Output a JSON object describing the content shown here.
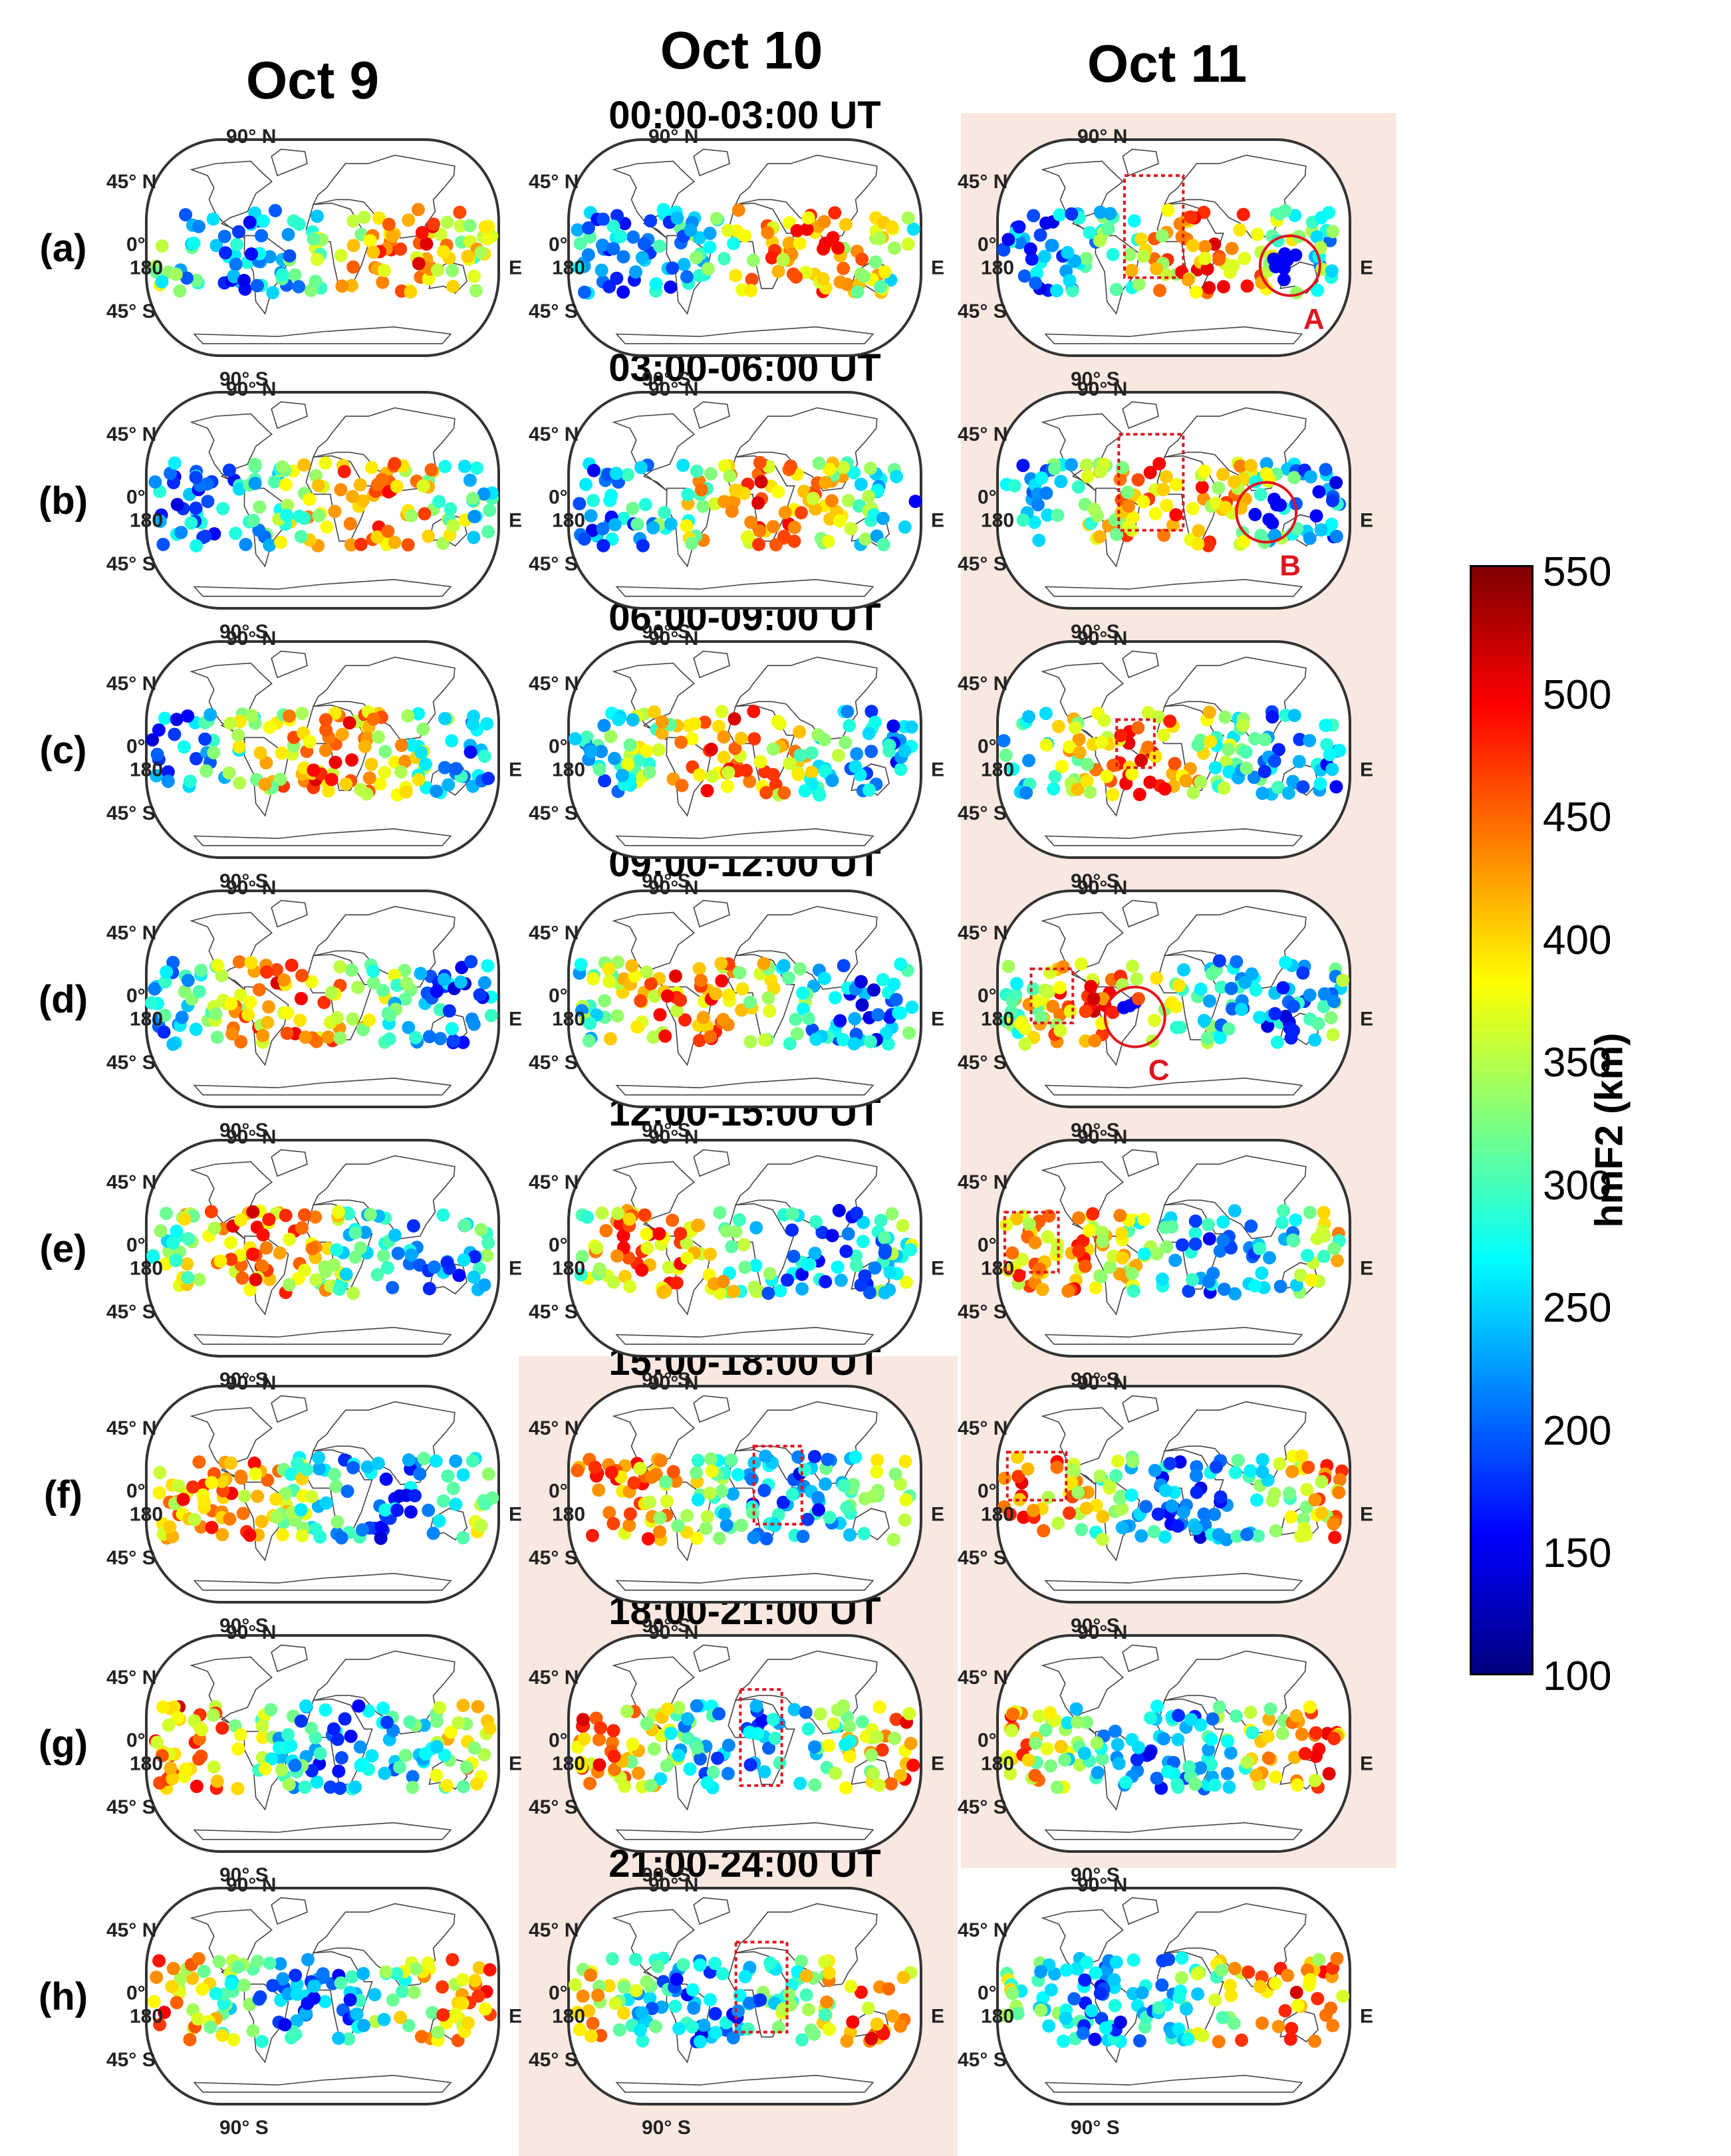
{
  "columns": [
    "Oct 9",
    "Oct 10",
    "Oct 11"
  ],
  "rows": [
    "(a)",
    "(b)",
    "(c)",
    "(d)",
    "(e)",
    "(f)",
    "(g)",
    "(h)"
  ],
  "time_windows": [
    "00:00-03:00 UT",
    "03:00-06:00 UT",
    "06:00-09:00 UT",
    "09:00-12:00 UT",
    "12:00-15:00 UT",
    "15:00-18:00 UT",
    "18:00-21:00 UT",
    "21:00-24:00 UT"
  ],
  "map_axis_labels": {
    "lat_90n": "90° N",
    "lat_45n": "45° N",
    "lat_0": "0°",
    "lat_45s": "45° S",
    "lat_90s": "90° S",
    "lon_180": "180",
    "lon_e": "E"
  },
  "annotations": [
    {
      "letter": "A",
      "panel": "(a) Oct 11"
    },
    {
      "letter": "B",
      "panel": "(b) Oct 11"
    },
    {
      "letter": "C",
      "panel": "(d) Oct 11"
    }
  ],
  "colors": {
    "highlight_bg": "#f8e8df",
    "box_color": "#e0141e"
  },
  "colorbar": {
    "label": "hmF2 (km)",
    "ticks": [
      "550",
      "500",
      "450",
      "400",
      "350",
      "300",
      "250",
      "200",
      "150",
      "100"
    ],
    "range": [
      100,
      550
    ],
    "colormap": "jet"
  }
}
